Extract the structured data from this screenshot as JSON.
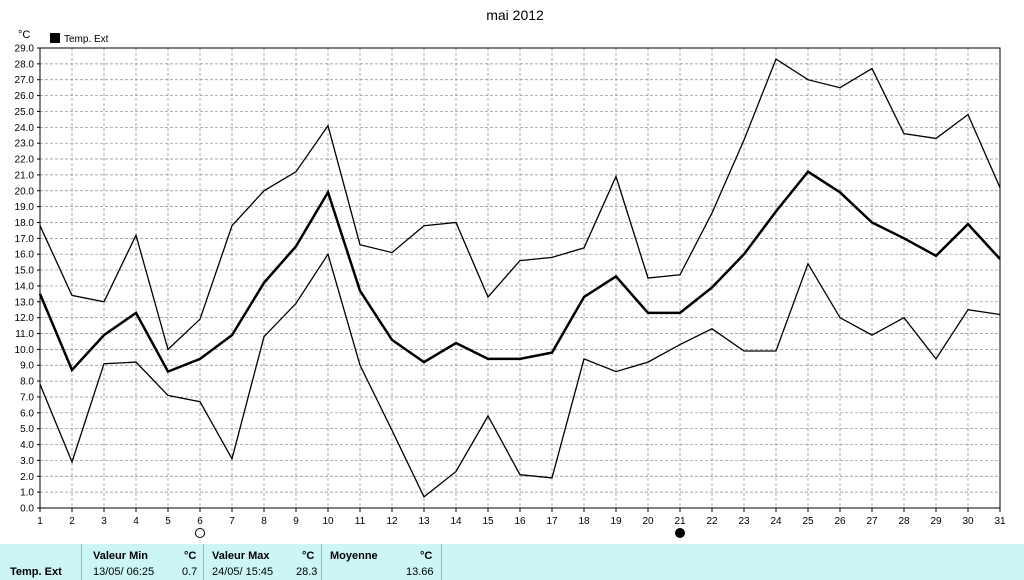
{
  "chart_data": {
    "type": "line",
    "title": "mai 2012",
    "ylabel": "°C",
    "ylim": [
      0,
      29
    ],
    "y_step": 1,
    "grid": true,
    "legend": {
      "entries": [
        "Temp. Ext"
      ],
      "placement": "top-left"
    },
    "x": [
      1,
      2,
      3,
      4,
      5,
      6,
      7,
      8,
      9,
      10,
      11,
      12,
      13,
      14,
      15,
      16,
      17,
      18,
      19,
      20,
      21,
      22,
      23,
      24,
      25,
      26,
      27,
      28,
      29,
      30,
      31
    ],
    "series": [
      {
        "name": "Temp. Ext",
        "role": "max",
        "values": [
          17.8,
          13.4,
          13.0,
          17.2,
          10.0,
          11.9,
          17.8,
          20.0,
          21.2,
          24.1,
          16.6,
          16.1,
          17.8,
          18.0,
          13.3,
          15.6,
          15.8,
          16.4,
          20.9,
          14.5,
          14.7,
          18.6,
          23.2,
          28.3,
          27.0,
          26.5,
          27.7,
          23.6,
          23.3,
          24.8,
          20.2
        ]
      },
      {
        "role": "mean",
        "values": [
          13.5,
          8.7,
          10.9,
          12.3,
          8.6,
          9.4,
          10.9,
          14.2,
          16.5,
          19.9,
          13.7,
          10.6,
          9.2,
          10.4,
          9.4,
          9.4,
          9.8,
          13.3,
          14.6,
          12.3,
          12.3,
          13.9,
          16.0,
          18.7,
          21.2,
          19.9,
          18.0,
          17.0,
          15.9,
          17.9,
          15.7
        ]
      },
      {
        "role": "min",
        "values": [
          7.8,
          2.9,
          9.1,
          9.2,
          7.1,
          6.7,
          3.1,
          10.8,
          12.9,
          16.0,
          9.0,
          4.9,
          0.7,
          2.3,
          5.8,
          2.1,
          1.9,
          9.4,
          8.6,
          9.2,
          10.3,
          11.3,
          9.9,
          9.9,
          15.4,
          12.0,
          10.9,
          12.0,
          9.4,
          12.5,
          12.2
        ]
      }
    ],
    "moon_markers": [
      {
        "day": 6,
        "phase": "full"
      },
      {
        "day": 21,
        "phase": "new"
      }
    ]
  },
  "footer": {
    "series_name": "Temp. Ext",
    "min_header": "Valeur Min",
    "min_unit": "°C",
    "min_time": "13/05/  06:25",
    "min_value": "0.7",
    "max_header": "Valeur Max",
    "max_unit": "°C",
    "max_time": "24/05/  15:45",
    "max_value": "28.3",
    "avg_header": "Moyenne",
    "avg_unit": "°C",
    "avg_value": "13.66"
  },
  "colors": {
    "line": "#000000",
    "grid": "#888888",
    "footer_bg": "#ccf5f5"
  }
}
